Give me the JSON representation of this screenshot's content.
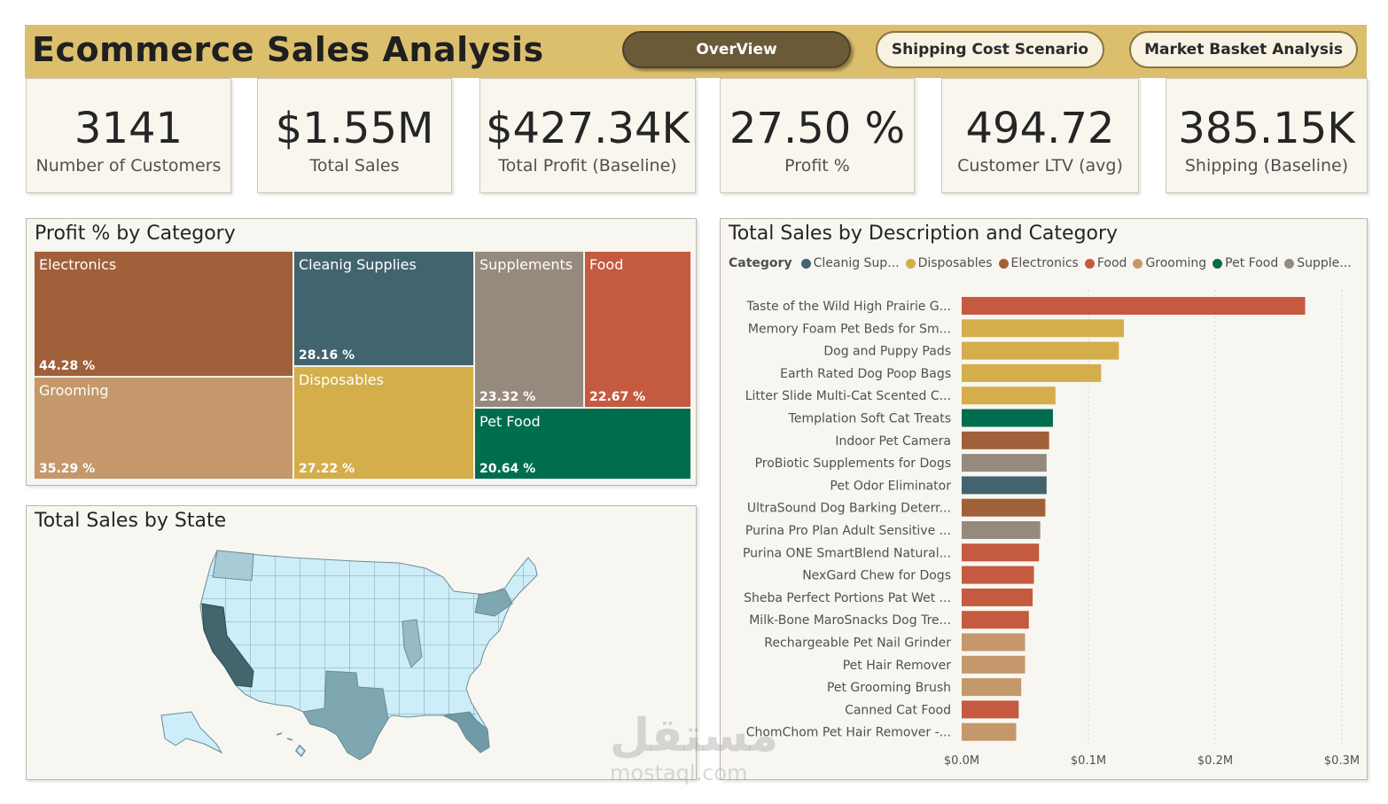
{
  "header": {
    "title": "Ecommerce Sales Analysis",
    "nav": [
      "OverView",
      "Shipping Cost Scenario",
      "Market Basket Analysis"
    ]
  },
  "kpis": [
    {
      "value": "3141",
      "label": "Number of Customers"
    },
    {
      "value": "$1.55M",
      "label": "Total Sales"
    },
    {
      "value": "$427.34K",
      "label": "Total Profit (Baseline)"
    },
    {
      "value": "27.50 %",
      "label": "Profit %"
    },
    {
      "value": "494.72",
      "label": "Customer LTV (avg)"
    },
    {
      "value": "385.15K",
      "label": "Shipping (Baseline)"
    }
  ],
  "treemap": {
    "title": "Profit % by Category",
    "cells": [
      {
        "name": "Electronics",
        "value": "44.28 %",
        "color": "#a0603a"
      },
      {
        "name": "Grooming",
        "value": "35.29 %",
        "color": "#c4986a"
      },
      {
        "name": "Cleanig Supplies",
        "value": "28.16 %",
        "color": "#41646e"
      },
      {
        "name": "Disposables",
        "value": "27.22 %",
        "color": "#d3ae4b"
      },
      {
        "name": "Supplements",
        "value": "23.32 %",
        "color": "#968a7f"
      },
      {
        "name": "Food",
        "value": "22.67 %",
        "color": "#c45a3f"
      },
      {
        "name": "Pet Food",
        "value": "20.64 %",
        "color": "#006e4e"
      }
    ]
  },
  "map": {
    "title": "Total Sales by State"
  },
  "bar_panel": {
    "title": "Total Sales by Description and Category",
    "legend_title": "Category",
    "legend": [
      {
        "label": "Cleanig Sup...",
        "color": "#41646e"
      },
      {
        "label": "Disposables",
        "color": "#d3ae4b"
      },
      {
        "label": "Electronics",
        "color": "#a0603a"
      },
      {
        "label": "Food",
        "color": "#c45a3f"
      },
      {
        "label": "Grooming",
        "color": "#c4986a"
      },
      {
        "label": "Pet Food",
        "color": "#006e4e"
      },
      {
        "label": "Supple...",
        "color": "#968a7f"
      }
    ]
  },
  "chart_data": {
    "type": "bar",
    "orientation": "horizontal",
    "title": "Total Sales by Description and Category",
    "xlim": [
      0,
      0.3
    ],
    "x_ticks": [
      "$0.0M",
      "$0.1M",
      "$0.2M",
      "$0.3M"
    ],
    "x_tick_values": [
      0,
      0.1,
      0.2,
      0.3
    ],
    "unit": "$M",
    "categories": [
      "Taste of the Wild High Prairie G...",
      "Memory Foam Pet Beds for Sm...",
      "Dog and Puppy Pads",
      "Earth Rated Dog Poop Bags",
      "Litter Slide Multi-Cat Scented C...",
      "Templation Soft Cat Treats",
      "Indoor Pet Camera",
      "ProBiotic Supplements for Dogs",
      "Pet Odor Eliminator",
      "UltraSound Dog Barking Deterr...",
      "Purina Pro Plan Adult Sensitive ...",
      "Purina ONE SmartBlend Natural...",
      "NexGard Chew for Dogs",
      "Sheba Perfect Portions Pat Wet ...",
      "Milk-Bone MaroSnacks Dog Tre...",
      "Rechargeable Pet Nail Grinder",
      "Pet Hair Remover",
      "Pet Grooming Brush",
      "Canned Cat Food",
      "ChomChom Pet Hair Remover -..."
    ],
    "values": [
      0.271,
      0.128,
      0.124,
      0.11,
      0.074,
      0.072,
      0.069,
      0.067,
      0.067,
      0.066,
      0.062,
      0.061,
      0.057,
      0.056,
      0.053,
      0.05,
      0.05,
      0.047,
      0.045,
      0.043
    ],
    "series_category": [
      "Food",
      "Disposables",
      "Disposables",
      "Disposables",
      "Disposables",
      "Pet Food",
      "Electronics",
      "Supplements",
      "Cleanig Supplies",
      "Electronics",
      "Supplements",
      "Food",
      "Food",
      "Food",
      "Food",
      "Grooming",
      "Grooming",
      "Grooming",
      "Food",
      "Grooming"
    ],
    "colors": {
      "Cleanig Supplies": "#41646e",
      "Disposables": "#d3ae4b",
      "Electronics": "#a0603a",
      "Food": "#c45a3f",
      "Grooming": "#c4986a",
      "Pet Food": "#006e4e",
      "Supplements": "#968a7f"
    }
  },
  "watermark": {
    "arabic": "مستقل",
    "latin": "mostaql.com"
  }
}
